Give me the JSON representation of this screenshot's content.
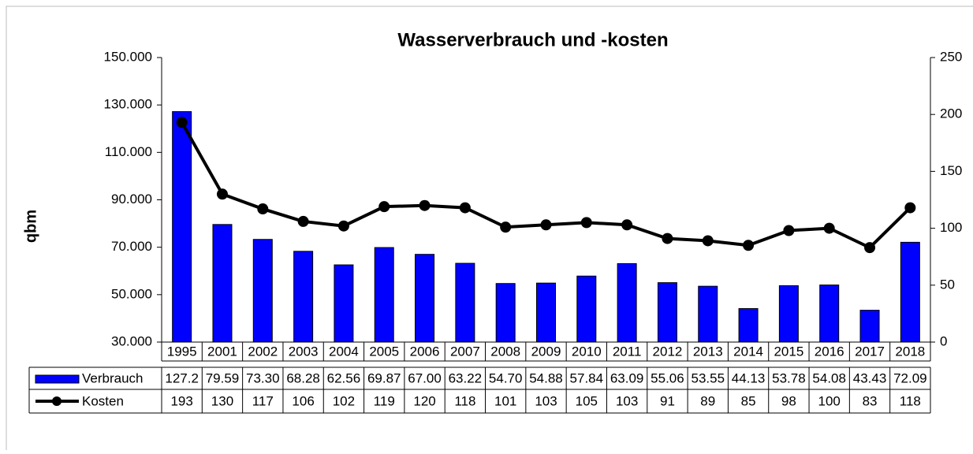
{
  "chart_data": {
    "type": "bar-line",
    "title": "Wasserverbrauch und -kosten",
    "y_label": "qbm",
    "categories": [
      "1995",
      "2001",
      "2002",
      "2003",
      "2004",
      "2005",
      "2006",
      "2007",
      "2008",
      "2009",
      "2010",
      "2011",
      "2012",
      "2013",
      "2014",
      "2015",
      "2016",
      "2017",
      "2018"
    ],
    "series": [
      {
        "name": "Verbrauch",
        "type": "bar",
        "color": "#0000ff",
        "axis": "y",
        "values": [
          127200,
          79590,
          73300,
          68280,
          62560,
          69870,
          67000,
          63220,
          54700,
          54880,
          57840,
          63090,
          55060,
          53550,
          44130,
          53780,
          54080,
          43430,
          72090
        ],
        "value_labels": [
          "127.2",
          "79.59",
          "73.30",
          "68.28",
          "62.56",
          "69.87",
          "67.00",
          "63.22",
          "54.70",
          "54.88",
          "57.84",
          "63.09",
          "55.06",
          "53.55",
          "44.13",
          "53.78",
          "54.08",
          "43.43",
          "72.09"
        ]
      },
      {
        "name": "Kosten",
        "type": "line",
        "color": "#000000",
        "axis": "y2",
        "values": [
          193,
          130,
          117,
          106,
          102,
          119,
          120,
          118,
          101,
          103,
          105,
          103,
          91,
          89,
          85,
          98,
          100,
          83,
          118
        ]
      }
    ],
    "ylim": [
      30000,
      150000
    ],
    "yticks": [
      {
        "value": 30000,
        "label": "30.000"
      },
      {
        "value": 50000,
        "label": "50.000"
      },
      {
        "value": 70000,
        "label": "70.000"
      },
      {
        "value": 90000,
        "label": "90.000"
      },
      {
        "value": 110000,
        "label": "110.000"
      },
      {
        "value": 130000,
        "label": "130.000"
      },
      {
        "value": 150000,
        "label": "150.000"
      }
    ],
    "y2lim": [
      0,
      250
    ],
    "y2ticks": [
      0,
      50,
      100,
      150,
      200,
      250
    ]
  }
}
